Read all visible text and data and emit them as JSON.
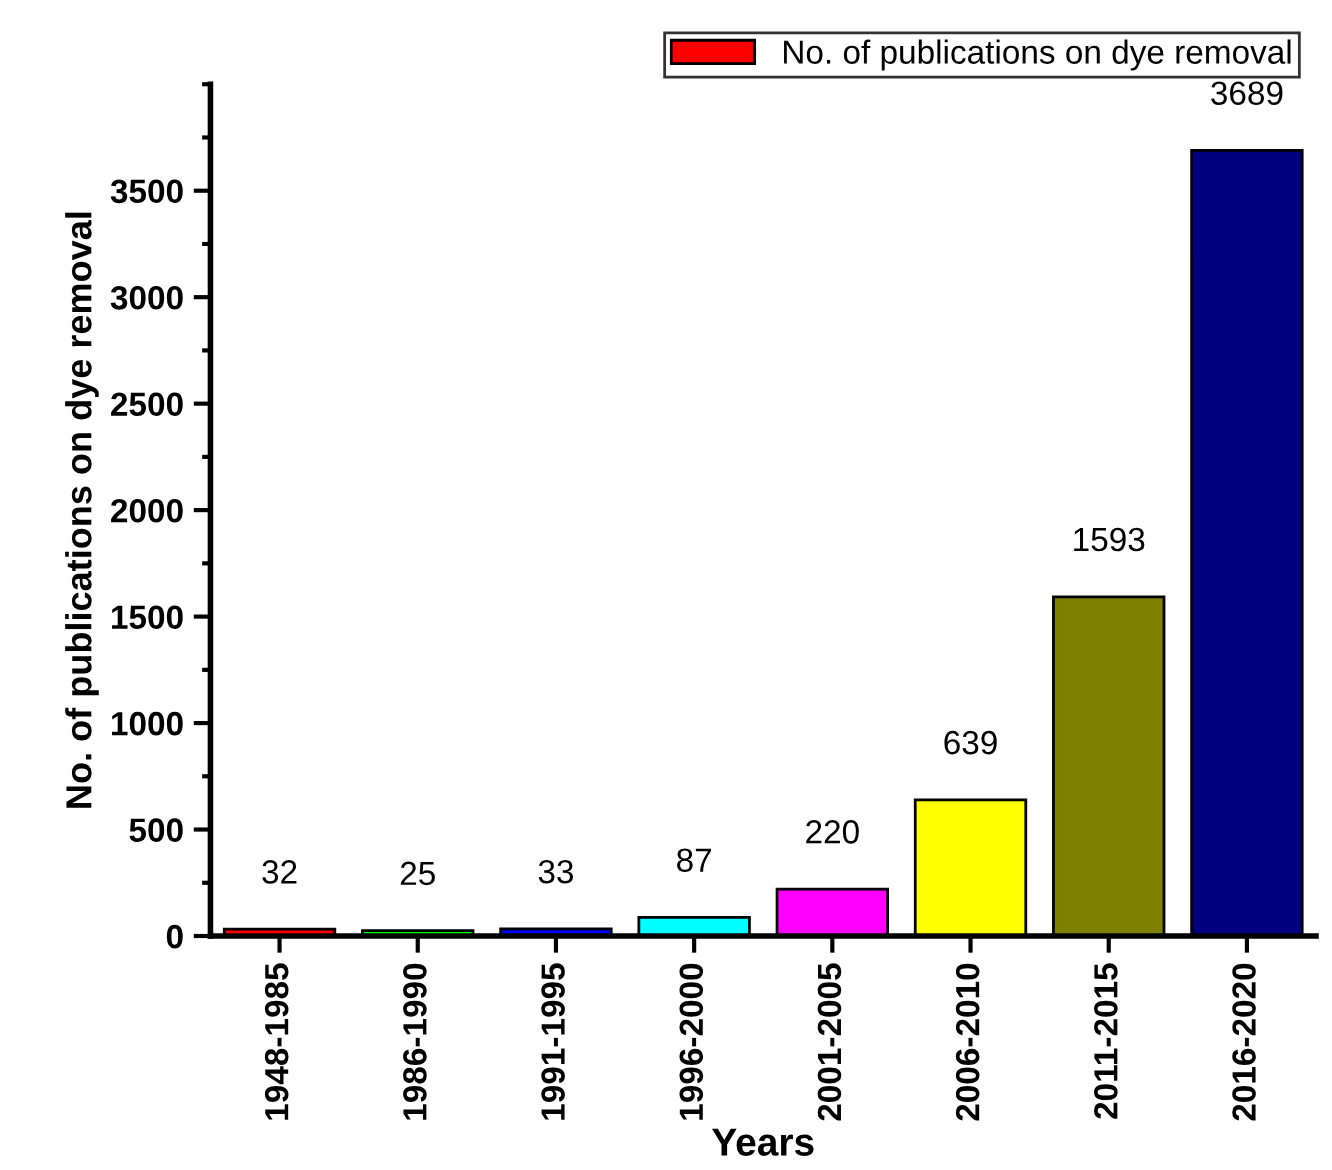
{
  "chart_data": {
    "type": "bar",
    "xlabel": "Years",
    "ylabel": "No. of publications on dye removal",
    "categories": [
      "1948-1985",
      "1986-1990",
      "1991-1995",
      "1996-2000",
      "2001-2005",
      "2006-2010",
      "2011-2015",
      "2016-2020"
    ],
    "series": [
      {
        "name": "No. of publications on dye removal",
        "colors": [
          "#ff0000",
          "#00ff00",
          "#0000ff",
          "#00ffff",
          "#ff00ff",
          "#ffff00",
          "#808000",
          "#000080"
        ],
        "values": [
          32,
          25,
          33,
          87,
          220,
          639,
          1593,
          3689
        ]
      }
    ],
    "ylim": [
      0,
      4000
    ],
    "yticks": [
      0,
      500,
      1000,
      1500,
      2000,
      2500,
      3000,
      3500
    ],
    "data_labels": true,
    "grid": false,
    "legend": "top right"
  }
}
